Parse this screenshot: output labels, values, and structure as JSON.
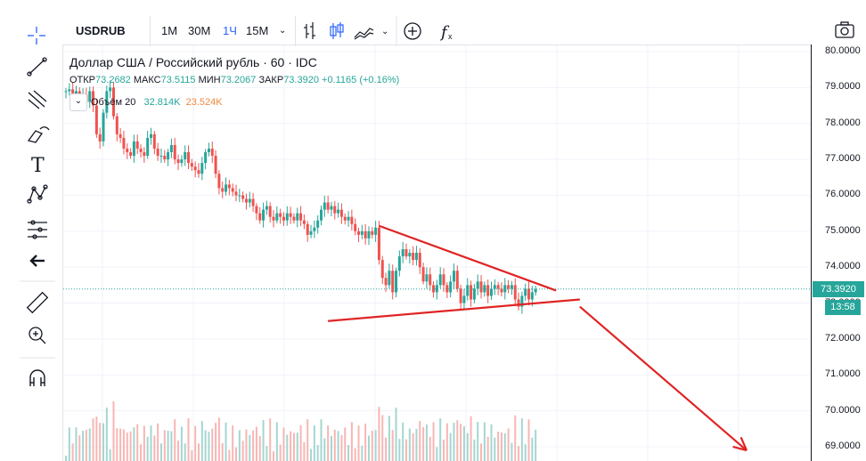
{
  "toolbar": {
    "symbol": "USDRUB",
    "intervals": [
      "1M",
      "30M",
      "1Ч",
      "15M"
    ],
    "active_interval": "1Ч"
  },
  "legend": {
    "title": "Доллар США / Российский рубль · 60 · IDC",
    "open_label": "ОТКР",
    "open": "73.2682",
    "high_label": "МАКС",
    "high": "73.5115",
    "low_label": "МИН",
    "low": "73.2067",
    "close_label": "ЗАКР",
    "close": "73.3920",
    "change": "+0.1165 (+0.16%)",
    "volume_label": "Объём 20",
    "volume_value": "32.814K",
    "volume_ma": "23.524K"
  },
  "price_axis": {
    "labels": [
      "80.0000",
      "79.0000",
      "78.0000",
      "77.0000",
      "76.0000",
      "75.0000",
      "74.0000",
      "73.0000",
      "72.0000",
      "71.0000",
      "70.0000",
      "69.0000"
    ],
    "last_price": "73.3920",
    "countdown": "13:58"
  },
  "colors": {
    "up": "#26a69a",
    "down": "#ef5350",
    "drawing": "#e02424",
    "accent": "#2962ff"
  },
  "chart_data": {
    "type": "candlestick",
    "title": "Доллар США / Российский рубль · 60 · IDC",
    "ylim": [
      68.9,
      80.1
    ],
    "last": 73.392,
    "series_close": [
      78.9,
      78.95,
      78.8,
      78.9,
      78.7,
      78.8,
      78.6,
      78.9,
      78.5,
      77.7,
      77.5,
      78.3,
      78.9,
      79.0,
      78.2,
      77.7,
      77.6,
      77.3,
      77.2,
      77.1,
      77.5,
      77.3,
      77.2,
      77.1,
      77.6,
      77.7,
      77.3,
      77.1,
      77.1,
      77.0,
      77.2,
      77.4,
      77.0,
      76.9,
      77.0,
      77.2,
      76.9,
      76.8,
      76.7,
      76.6,
      76.9,
      77.2,
      77.3,
      77.1,
      76.6,
      76.2,
      76.1,
      76.3,
      76.2,
      76.1,
      76.0,
      76.0,
      75.9,
      75.8,
      75.9,
      75.7,
      75.5,
      75.3,
      75.6,
      75.7,
      75.4,
      75.3,
      75.5,
      75.4,
      75.3,
      75.5,
      75.4,
      75.3,
      75.5,
      75.3,
      75.2,
      74.9,
      75.0,
      75.1,
      75.3,
      75.6,
      75.8,
      75.6,
      75.7,
      75.5,
      75.6,
      75.4,
      75.3,
      75.4,
      75.2,
      75.0,
      74.9,
      75.0,
      74.8,
      75.0,
      74.9,
      75.1,
      74.2,
      73.7,
      73.5,
      73.9,
      73.3,
      73.9,
      74.3,
      74.5,
      74.3,
      74.4,
      74.2,
      74.4,
      74.0,
      73.6,
      73.8,
      73.5,
      73.3,
      73.5,
      73.8,
      73.5,
      73.3,
      73.6,
      73.9,
      73.4,
      73.0,
      73.2,
      73.5,
      73.1,
      73.4,
      73.6,
      73.3,
      73.5,
      73.2,
      73.4,
      73.5,
      73.4,
      73.3,
      73.5,
      73.4,
      73.5,
      73.1,
      72.9,
      73.2,
      73.4,
      73.1,
      73.3,
      73.392
    ],
    "annotations": [
      {
        "type": "trendline",
        "from": [
          92,
          75.15
        ],
        "to": [
          144,
          73.35
        ]
      },
      {
        "type": "trendline",
        "from": [
          77,
          72.5
        ],
        "to": [
          151,
          73.1
        ]
      },
      {
        "type": "arrow",
        "from": [
          151,
          72.9
        ],
        "to": [
          200,
          68.9
        ]
      }
    ]
  }
}
